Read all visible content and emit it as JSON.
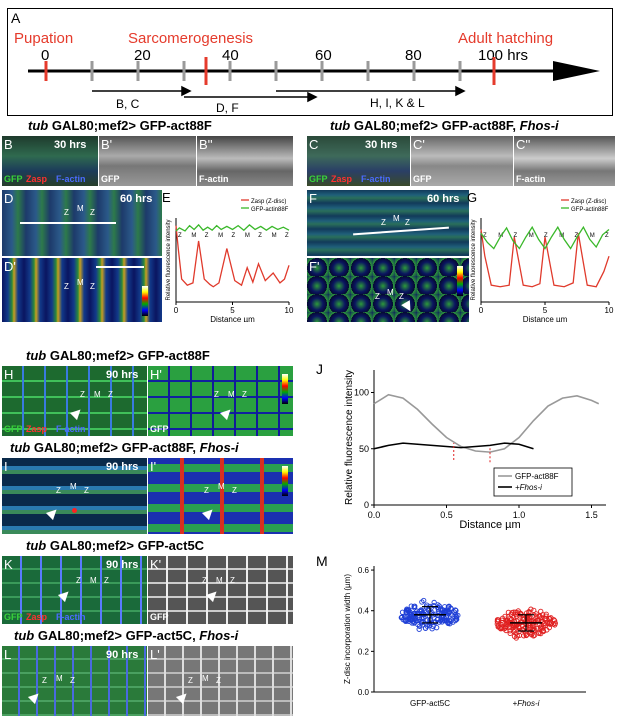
{
  "timeline": {
    "panel_label": "A",
    "stages": [
      "Pupation",
      "Sarcomerogenesis",
      "Adult hatching"
    ],
    "ticks": [
      "0",
      "20",
      "40",
      "60",
      "80",
      "100 hrs"
    ],
    "arrows": [
      "B, C",
      "D, F",
      "H, I, K & L"
    ],
    "colors": {
      "red": "#e53b2c",
      "grey": "#9a9a9a"
    }
  },
  "titles": {
    "top_left": {
      "bold": "tub",
      "rest": " GAL80;mef2> GFP-act88F"
    },
    "top_right": {
      "bold": "tub",
      "rest": " GAL80;mef2> GFP-act88F, ",
      "ital": "Fhos-i"
    },
    "mid1": {
      "bold": "tub",
      "rest": " GAL80;mef2> GFP-act88F"
    },
    "mid2": {
      "bold": "tub",
      "rest": " GAL80;mef2> GFP-act88F, ",
      "ital": "Fhos-i"
    },
    "mid3": {
      "bold": "tub",
      "rest": " GAL80;mef2> GFP-act5C"
    },
    "mid4": {
      "bold": "tub",
      "rest": " GAL80;mef2> GFP-act5C, ",
      "ital": "Fhos-i"
    }
  },
  "panels": {
    "B": {
      "label": "B",
      "hrs": "30 hrs",
      "ch_gfp": "GFP",
      "ch_zasp": "Zasp",
      "ch_factin": "F-actin"
    },
    "B1": {
      "label": "B'",
      "ch": "GFP"
    },
    "B2": {
      "label": "B''",
      "ch": "F-actin"
    },
    "C": {
      "label": "C",
      "hrs": "30 hrs",
      "ch_gfp": "GFP",
      "ch_zasp": "Zasp",
      "ch_factin": "F-actin"
    },
    "C1": {
      "label": "C'",
      "ch": "GFP"
    },
    "C2": {
      "label": "C''",
      "ch": "F-actin"
    },
    "D": {
      "label": "D",
      "hrs": "60 hrs"
    },
    "D1": {
      "label": "D'"
    },
    "F": {
      "label": "F",
      "hrs": "60 hrs"
    },
    "F1": {
      "label": "F'"
    },
    "H": {
      "label": "H",
      "hrs": "90 hrs",
      "ch_gfp": "GFP",
      "ch_zasp": "Zasp",
      "ch_factin": "F-actin"
    },
    "H1": {
      "label": "H'",
      "ch": "GFP"
    },
    "I": {
      "label": "I",
      "hrs": "90 hrs"
    },
    "I1": {
      "label": "I'"
    },
    "K": {
      "label": "K",
      "hrs": "90 hrs",
      "ch_gfp": "GFP",
      "ch_zasp": "Zasp",
      "ch_factin": "F-actin"
    },
    "K1": {
      "label": "K'",
      "ch": "GFP"
    },
    "L": {
      "label": "L",
      "hrs": "90 hrs"
    },
    "L1": {
      "label": "L'"
    }
  },
  "marks": {
    "z": "Z",
    "m": "M"
  },
  "scale_values": {
    "max": "255",
    "mid": "128",
    "min": "0"
  },
  "chart_data": [
    {
      "panel": "E",
      "type": "line",
      "xlabel": "Distance µm",
      "ylabel": "Relative fluorescence intensity",
      "xticks": [
        "0",
        "5",
        "10"
      ],
      "xlim": [
        0,
        10
      ],
      "ylim": [
        0,
        110
      ],
      "legend": [
        "Zasp (Z-disc)",
        "GFP-actin88F"
      ],
      "legend_position": "top-right",
      "band_labels": [
        "Z",
        "M",
        "Z",
        "M",
        "Z",
        "M",
        "Z",
        "M",
        "Z"
      ],
      "series": [
        {
          "name": "Zasp (Z-disc)",
          "color": "#e03a2c",
          "x": [
            0,
            0.2,
            0.5,
            1,
            1.5,
            2,
            2.5,
            3,
            3.3,
            3.8,
            4.5,
            5.2,
            5.8,
            6.3,
            6.8,
            7.3,
            7.9,
            8.6,
            9.2,
            9.6,
            10
          ],
          "values": [
            100,
            70,
            30,
            22,
            25,
            80,
            30,
            23,
            20,
            25,
            70,
            28,
            22,
            45,
            26,
            50,
            28,
            38,
            25,
            30,
            48
          ]
        },
        {
          "name": "GFP-actin88F",
          "color": "#3ab82a",
          "x": [
            0,
            0.3,
            0.8,
            1.2,
            1.6,
            2.0,
            2.4,
            2.8,
            3.2,
            3.6,
            4.0,
            4.5,
            5,
            5.5,
            6,
            6.5,
            7,
            7.5,
            8,
            8.5,
            9,
            9.5,
            10
          ],
          "values": [
            93,
            97,
            93,
            100,
            95,
            101,
            94,
            98,
            94,
            100,
            95,
            99,
            95,
            100,
            94,
            101,
            95,
            99,
            94,
            99,
            95,
            98,
            94
          ]
        }
      ]
    },
    {
      "panel": "G",
      "type": "line",
      "xlabel": "Distance µm",
      "ylabel": "Relative fluorescence intensity",
      "xticks": [
        "0",
        "5",
        "10"
      ],
      "xlim": [
        0,
        10
      ],
      "ylim": [
        0,
        110
      ],
      "legend": [
        "Zasp (Z-disc)",
        "GFP-actin88F"
      ],
      "legend_position": "top-right",
      "band_labels": [
        "Z",
        "M",
        "Z",
        "M",
        "Z",
        "M",
        "Z",
        "M",
        "Z"
      ],
      "series": [
        {
          "name": "Zasp (Z-disc)",
          "color": "#e03a2c",
          "x": [
            0,
            0.3,
            0.8,
            1.5,
            2.2,
            2.6,
            3.3,
            4,
            4.6,
            5,
            5.7,
            6.5,
            7.2,
            7.6,
            8.3,
            9,
            9.6,
            10
          ],
          "values": [
            95,
            60,
            22,
            20,
            22,
            85,
            22,
            20,
            24,
            85,
            22,
            20,
            25,
            90,
            22,
            20,
            40,
            60
          ]
        },
        {
          "name": "GFP-actin88F",
          "color": "#3ab82a",
          "x": [
            0,
            0.5,
            1,
            1.5,
            2,
            2.5,
            3,
            3.5,
            4,
            4.5,
            5,
            5.5,
            6,
            6.5,
            7,
            7.5,
            8,
            8.5,
            9,
            9.5,
            10
          ],
          "values": [
            90,
            78,
            70,
            85,
            97,
            80,
            70,
            85,
            98,
            82,
            70,
            85,
            98,
            82,
            70,
            85,
            98,
            82,
            72,
            88,
            95
          ]
        }
      ]
    },
    {
      "panel": "J",
      "type": "line",
      "xlabel": "Distance µm",
      "ylabel": "Relative fluorescence intensity",
      "xticks": [
        "0.0",
        "0.5",
        "1.0",
        "1.5"
      ],
      "yticks": [
        "0",
        "50",
        "100"
      ],
      "xlim": [
        0,
        1.6
      ],
      "ylim": [
        0,
        120
      ],
      "legend": [
        "GFP-act88F",
        "+Fhos-i"
      ],
      "legend_position": "bottom-right",
      "series": [
        {
          "name": "GFP-act88F",
          "color": "#999999",
          "x": [
            0,
            0.1,
            0.2,
            0.3,
            0.4,
            0.5,
            0.6,
            0.7,
            0.8,
            0.9,
            1.0,
            1.1,
            1.2,
            1.3,
            1.4,
            1.5,
            1.55
          ],
          "values": [
            90,
            98,
            95,
            85,
            72,
            60,
            52,
            48,
            47,
            50,
            60,
            75,
            88,
            95,
            97,
            93,
            90
          ]
        },
        {
          "name": "+Fhos-i",
          "color": "#000000",
          "x": [
            0,
            0.1,
            0.2,
            0.3,
            0.4,
            0.5,
            0.6,
            0.7,
            0.8,
            0.9,
            1.0,
            1.1
          ],
          "values": [
            50,
            53,
            55,
            54,
            53,
            52,
            51,
            52,
            53,
            55,
            54,
            50
          ]
        }
      ]
    },
    {
      "panel": "M",
      "type": "scatter",
      "ylabel": "Z-disc incorporation width (µm)",
      "categories": [
        "GFP-act5C",
        "+Fhos-i"
      ],
      "yticks": [
        "0.0",
        "0.2",
        "0.4",
        "0.6"
      ],
      "ylim": [
        0,
        0.62
      ],
      "series": [
        {
          "name": "GFP-act5C",
          "color": "#1f3fd6",
          "mean": 0.38,
          "sd": 0.04,
          "range": [
            0.26,
            0.51
          ]
        },
        {
          "name": "+Fhos-i",
          "color": "#e02020",
          "mean": 0.34,
          "sd": 0.04,
          "range": [
            0.22,
            0.46
          ]
        }
      ]
    }
  ]
}
